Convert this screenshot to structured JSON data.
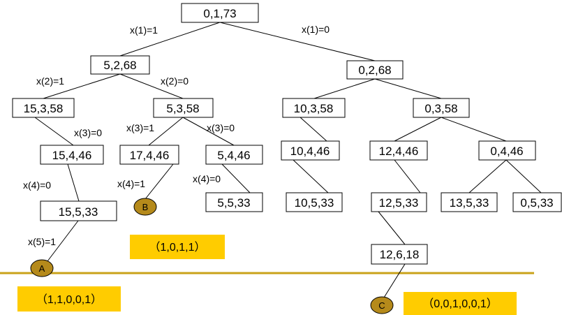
{
  "colors": {
    "answer_fill": "#ffcc00",
    "marker_fill": "#b58a1b",
    "separator": "#c9a21a",
    "box_stroke": "#000000"
  },
  "nodes": {
    "n0": "0,1,73",
    "n1": "5,2,68",
    "n2": "0,2,68",
    "n3": "15,3,58",
    "n4": "5,3,58",
    "n5": "10,3,58",
    "n6": "0,3,58",
    "n7": "15,4,46",
    "n8": "17,4,46",
    "n9": "5,4,46",
    "n10": "10,4,46",
    "n11": "12,4,46",
    "n12": "0,4,46",
    "n13": "15,5,33",
    "n14": "5,5,33",
    "n15": "10,5,33",
    "n16": "12,5,33",
    "n17": "13,5,33",
    "n18": "0,5,33",
    "n19": "12,6,18"
  },
  "edge_labels": {
    "x1_left": "x(1)=1",
    "x1_right": "x(1)=0",
    "x2_left": "x(2)=1",
    "x2_right": "x(2)=0",
    "x3_left_branch": "x(3)=0",
    "x3_mid_left": "x(3)=1",
    "x3_mid_right": "x(3)=0",
    "x4_left": "x(4)=0",
    "x4_mid_left": "x(4)=1",
    "x4_mid_right": "x(4)=0",
    "x5_left": "x(5)=1"
  },
  "markers": {
    "a": "A",
    "b": "B",
    "c": "C"
  },
  "answers": {
    "a": "（1,1,0,0,1）",
    "b": "（1,0,1,1）",
    "c": "（0,0,1,0,0,1）"
  }
}
